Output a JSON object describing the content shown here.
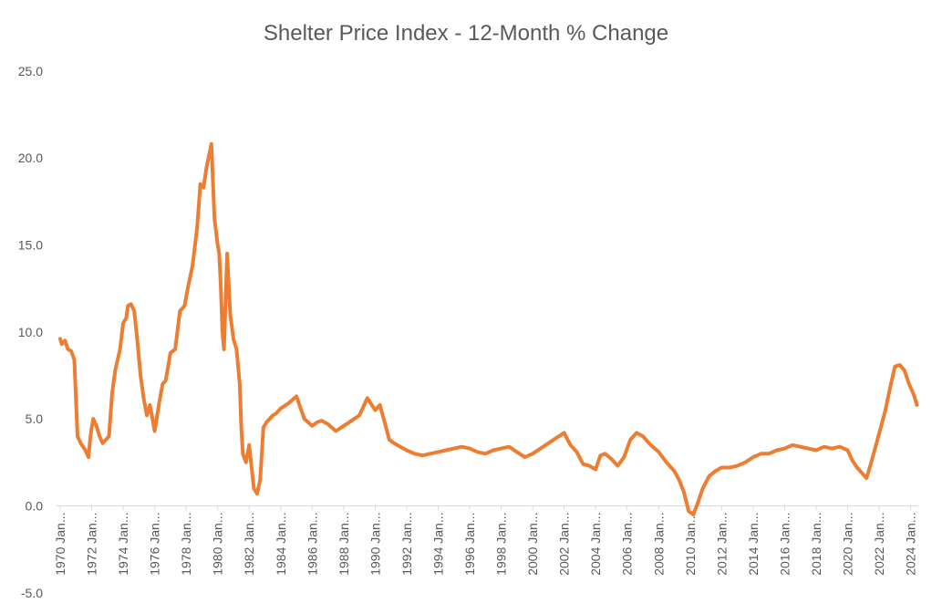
{
  "chart_data": {
    "type": "line",
    "title": "Shelter Price Index - 12-Month % Change",
    "xlabel": "",
    "ylabel": "",
    "ylim": [
      -5,
      25
    ],
    "yticks": [
      "-5.0",
      "0.0",
      "5.0",
      "10.0",
      "15.0",
      "20.0",
      "25.0"
    ],
    "xticks": [
      "1970 Jan...",
      "1972 Jan...",
      "1974 Jan...",
      "1976 Jan...",
      "1978 Jan...",
      "1980 Jan...",
      "1982 Jan...",
      "1984 Jan...",
      "1986 Jan...",
      "1988 Jan...",
      "1990 Jan...",
      "1992 Jan...",
      "1994 Jan...",
      "1996 Jan...",
      "1998 Jan...",
      "2000 Jan...",
      "2002 Jan...",
      "2004 Jan...",
      "2006 Jan...",
      "2008 Jan...",
      "2010 Jan...",
      "2012 Jan...",
      "2014 Jan...",
      "2016 Jan...",
      "2018 Jan...",
      "2020 Jan...",
      "2022 Jan...",
      "2024 Jan..."
    ],
    "grid": "none",
    "legend": "none",
    "line_color": "#ED7D31",
    "series": [
      {
        "x": [
          1970.0,
          1970.1,
          1970.3,
          1970.5,
          1970.7,
          1970.9,
          1971.1,
          1971.3,
          1971.6,
          1971.8,
          1971.9,
          1972.0,
          1972.1,
          1972.2,
          1972.3,
          1972.5,
          1972.7,
          1972.9,
          1973.1,
          1973.3,
          1973.5,
          1973.8,
          1974.0,
          1974.2,
          1974.3,
          1974.5,
          1974.7,
          1974.9,
          1975.1,
          1975.3,
          1975.5,
          1975.7,
          1976.0,
          1976.3,
          1976.5,
          1976.7,
          1977.0,
          1977.3,
          1977.6,
          1977.9,
          1978.1,
          1978.4,
          1978.7,
          1978.9,
          1979.1,
          1979.3,
          1979.6,
          1979.8,
          1980.0,
          1980.1,
          1980.2,
          1980.3,
          1980.4,
          1980.6,
          1980.8,
          1981.0,
          1981.2,
          1981.4,
          1981.5,
          1981.6,
          1981.8,
          1982.0,
          1982.3,
          1982.5,
          1982.7,
          1982.9,
          1983.1,
          1983.3,
          1983.5,
          1983.7,
          1984.0,
          1984.5,
          1985.0,
          1985.5,
          1986.0,
          1986.3,
          1986.6,
          1987.0,
          1987.5,
          1988.0,
          1988.5,
          1989.0,
          1989.5,
          1990.0,
          1990.3,
          1990.6,
          1990.9,
          1991.2,
          1991.6,
          1992.0,
          1992.5,
          1993.0,
          1993.5,
          1994.0,
          1994.5,
          1995.0,
          1995.5,
          1996.0,
          1996.5,
          1997.0,
          1997.5,
          1998.0,
          1998.5,
          1999.0,
          1999.5,
          2000.0,
          2000.5,
          2001.0,
          2001.5,
          2002.0,
          2002.4,
          2002.8,
          2003.2,
          2003.6,
          2004.0,
          2004.3,
          2004.6,
          2005.0,
          2005.4,
          2005.8,
          2006.2,
          2006.6,
          2007.0,
          2007.5,
          2008.0,
          2008.5,
          2009.0,
          2009.3,
          2009.6,
          2009.9,
          2010.2,
          2010.5,
          2010.8,
          2011.2,
          2011.6,
          2012.0,
          2012.5,
          2013.0,
          2013.5,
          2014.0,
          2014.5,
          2015.0,
          2015.5,
          2016.0,
          2016.5,
          2017.0,
          2017.5,
          2018.0,
          2018.5,
          2019.0,
          2019.5,
          2020.0,
          2020.3,
          2020.6,
          2020.9,
          2021.2,
          2021.5,
          2021.8,
          2022.1,
          2022.4,
          2022.7,
          2023.0,
          2023.3,
          2023.6,
          2023.9,
          2024.2,
          2024.4
        ],
        "values": [
          9.6,
          9.3,
          9.5,
          9.0,
          8.9,
          8.4,
          4.0,
          3.6,
          3.2,
          2.8,
          3.8,
          4.5,
          5.0,
          4.8,
          4.6,
          4.0,
          3.6,
          3.8,
          4.0,
          6.5,
          7.8,
          9.0,
          10.5,
          10.8,
          11.5,
          11.6,
          11.2,
          9.5,
          7.5,
          6.2,
          5.2,
          5.8,
          4.3,
          6.0,
          7.0,
          7.2,
          8.8,
          9.0,
          11.2,
          11.5,
          12.5,
          13.8,
          16.0,
          18.5,
          18.3,
          19.5,
          20.8,
          16.5,
          15.0,
          14.5,
          12.5,
          10.0,
          9.0,
          14.5,
          11.0,
          9.6,
          9.0,
          7.0,
          4.5,
          3.0,
          2.5,
          3.5,
          1.0,
          0.7,
          1.5,
          4.5,
          4.8,
          5.0,
          5.2,
          5.3,
          5.6,
          5.9,
          6.3,
          5.0,
          4.6,
          4.8,
          4.9,
          4.7,
          4.3,
          4.6,
          4.9,
          5.2,
          6.2,
          5.5,
          5.8,
          4.8,
          3.8,
          3.6,
          3.4,
          3.2,
          3.0,
          2.9,
          3.0,
          3.1,
          3.2,
          3.3,
          3.4,
          3.3,
          3.1,
          3.0,
          3.2,
          3.3,
          3.4,
          3.1,
          2.8,
          3.0,
          3.3,
          3.6,
          3.9,
          4.2,
          3.5,
          3.1,
          2.4,
          2.3,
          2.1,
          2.9,
          3.0,
          2.7,
          2.3,
          2.8,
          3.8,
          4.2,
          4.0,
          3.5,
          3.1,
          2.5,
          2.0,
          1.5,
          0.8,
          -0.3,
          -0.5,
          0.2,
          1.0,
          1.7,
          2.0,
          2.2,
          2.2,
          2.3,
          2.5,
          2.8,
          3.0,
          3.0,
          3.2,
          3.3,
          3.5,
          3.4,
          3.3,
          3.2,
          3.4,
          3.3,
          3.4,
          3.2,
          2.6,
          2.2,
          1.9,
          1.6,
          2.5,
          3.5,
          4.5,
          5.5,
          6.8,
          8.0,
          8.1,
          7.8,
          7.0,
          6.4,
          5.8
        ]
      }
    ]
  }
}
